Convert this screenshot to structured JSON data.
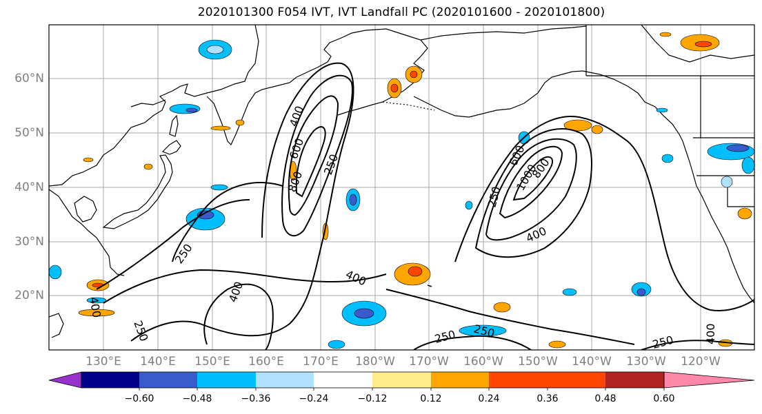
{
  "title": "2020101300 F054 IVT, IVT Landfall PC (2020101600 - 2020101800)",
  "lat_labels": [
    "60°N",
    "50°N",
    "40°N",
    "30°N",
    "20°N"
  ],
  "lon_labels": [
    "130°E",
    "140°E",
    "150°E",
    "160°E",
    "170°E",
    "180°W",
    "170°W",
    "160°W",
    "150°W",
    "140°W",
    "130°W",
    "120°W"
  ],
  "contour_labels": [
    "400",
    "600",
    "800",
    "250",
    "1000",
    "800",
    "600",
    "250",
    "400",
    "250",
    "400",
    "400",
    "250",
    "400",
    "250",
    "250",
    "250",
    "400"
  ],
  "colorbar": {
    "ticks": [
      "−0.60",
      "−0.48",
      "−0.36",
      "−0.24",
      "−0.12",
      "0.12",
      "0.24",
      "0.36",
      "0.48",
      "0.60"
    ],
    "colors": [
      "#9932cc",
      "#00008b",
      "#3a5bcc",
      "#00bfff",
      "#b0e2ff",
      "#ffffff",
      "#ffec8b",
      "#ffa500",
      "#ff4500",
      "#b22222",
      "#ff88aa"
    ]
  }
}
